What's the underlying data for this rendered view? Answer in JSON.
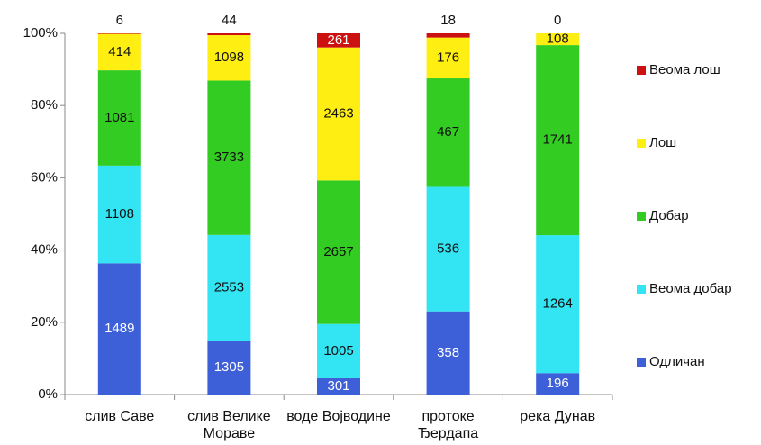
{
  "chart_data": {
    "type": "bar",
    "stacked": "percent",
    "categories": [
      "слив  Саве",
      "слив  Велике Мораве",
      "воде Војводине",
      "протоке Ђердапа",
      "река Дунав"
    ],
    "series": [
      {
        "name": "Одличан",
        "color": "#3d5fd8",
        "values": [
          1489,
          1305,
          301,
          358,
          196
        ]
      },
      {
        "name": "Веома добар",
        "color": "#33e4f2",
        "values": [
          1108,
          2553,
          1005,
          536,
          1264
        ]
      },
      {
        "name": "Добар",
        "color": "#33cc22",
        "values": [
          1081,
          3733,
          2657,
          467,
          1741
        ]
      },
      {
        "name": "Лош",
        "color": "#ffee11",
        "values": [
          414,
          1098,
          2463,
          176,
          108
        ]
      },
      {
        "name": "Веома лош",
        "color": "#cc1111",
        "values": [
          6,
          44,
          261,
          18,
          0
        ]
      }
    ],
    "ylim": [
      0,
      100
    ],
    "yticks": [
      {
        "value": 0,
        "label": "0%"
      },
      {
        "value": 20,
        "label": "20%"
      },
      {
        "value": 40,
        "label": "40%"
      },
      {
        "value": 60,
        "label": "60%"
      },
      {
        "value": 80,
        "label": "80%"
      },
      {
        "value": 100,
        "label": "100%"
      }
    ]
  }
}
